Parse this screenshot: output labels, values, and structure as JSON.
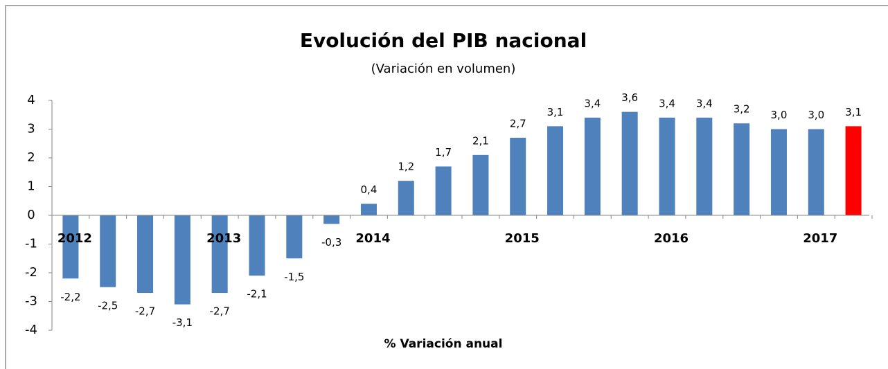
{
  "chart_data": {
    "type": "bar",
    "title": "Evolución del PIB nacional",
    "subtitle": "(Variación en volumen)",
    "x_label": "% Variación anual",
    "categories": [
      "2012",
      null,
      null,
      null,
      "2013",
      null,
      null,
      null,
      "2014",
      null,
      null,
      null,
      "2015",
      null,
      null,
      null,
      "2016",
      null,
      null,
      null,
      "2017",
      null
    ],
    "values": [
      -2.2,
      -2.5,
      -2.7,
      -3.1,
      -2.7,
      -2.1,
      -1.5,
      -0.3,
      0.4,
      1.2,
      1.7,
      2.1,
      2.7,
      3.1,
      3.4,
      3.6,
      3.4,
      3.4,
      3.2,
      3.0,
      3.0,
      3.1
    ],
    "value_labels": [
      "-2,2",
      "-2,5",
      "-2,7",
      "-3,1",
      "-2,7",
      "-2,1",
      "-1,5",
      "-0,3",
      "0,4",
      "1,2",
      "1,7",
      "2,1",
      "2,7",
      "3,1",
      "3,4",
      "3,6",
      "3,4",
      "3,4",
      "3,2",
      "3,0",
      "3,0",
      "3,1"
    ],
    "colors": [
      "#4f81bd",
      "#4f81bd",
      "#4f81bd",
      "#4f81bd",
      "#4f81bd",
      "#4f81bd",
      "#4f81bd",
      "#4f81bd",
      "#4f81bd",
      "#4f81bd",
      "#4f81bd",
      "#4f81bd",
      "#4f81bd",
      "#4f81bd",
      "#4f81bd",
      "#4f81bd",
      "#4f81bd",
      "#4f81bd",
      "#4f81bd",
      "#4f81bd",
      "#4f81bd",
      "#ff0000"
    ],
    "ylim": [
      -4,
      4
    ],
    "yticks": [
      -4,
      -3,
      -2,
      -1,
      0,
      1,
      2,
      3,
      4
    ],
    "grid": false
  }
}
